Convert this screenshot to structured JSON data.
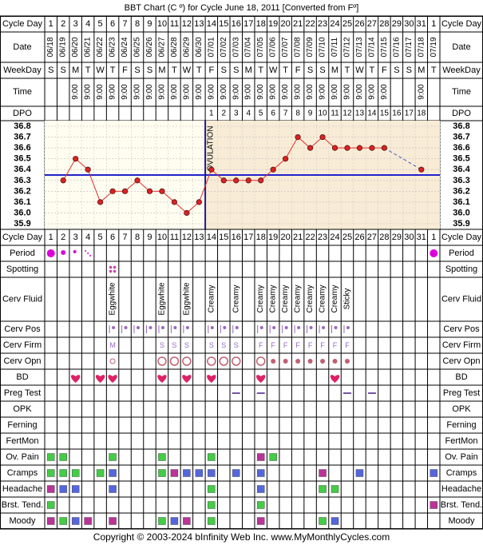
{
  "title": "BBT Chart (C º) for Cycle June 18, 2011  [Converted from Fº]",
  "footer": "Copyright © 2003-2024 bInfinity Web Inc.    www.MyMonthlyCycles.com",
  "colors": {
    "chart_bg_pre": "#fffdf0",
    "chart_bg_post": "#f9ecd6",
    "temp_line": "#e03030",
    "temp_point": "#dd2222",
    "coverline": "#2222cc",
    "ovulation_line": "#1a1a8c",
    "period": "#dd00dd",
    "spotting": "#cc44aa",
    "heart": "#dd2266",
    "pos": "#9966bb",
    "letters": "#9966cc",
    "circle": "#c06070",
    "preg_dash": "#7755aa",
    "green": "#44cc44",
    "blue": "#5566dd",
    "magenta": "#bb3399"
  },
  "row_labels": {
    "cycle_day": "Cycle Day",
    "date": "Date",
    "weekday": "WeekDay",
    "time": "Time",
    "dpo": "DPO",
    "period": "Period",
    "spotting": "Spotting",
    "cerv_fluid": "Cerv Fluid",
    "cerv_pos": "Cerv Pos",
    "cerv_firm": "Cerv Firm",
    "cerv_opn": "Cerv Opn",
    "bd": "BD",
    "preg_test": "Preg Test",
    "opk": "OPK",
    "ferning": "Ferning",
    "fertmon": "FertMon",
    "ov_pain": "Ov. Pain",
    "cramps": "Cramps",
    "headache": "Headache",
    "brst_tend": "Brst. Tend.",
    "moody": "Moody"
  },
  "cycle_days": [
    "1",
    "2",
    "3",
    "4",
    "5",
    "6",
    "7",
    "8",
    "9",
    "10",
    "11",
    "12",
    "13",
    "14",
    "15",
    "16",
    "17",
    "18",
    "19",
    "20",
    "21",
    "22",
    "23",
    "24",
    "25",
    "26",
    "27",
    "28",
    "29",
    "30",
    "31",
    "1"
  ],
  "dates": [
    "06/18",
    "06/19",
    "06/20",
    "06/21",
    "06/22",
    "06/23",
    "06/24",
    "06/25",
    "06/26",
    "06/27",
    "06/28",
    "06/29",
    "06/30",
    "07/01",
    "07/02",
    "07/03",
    "07/04",
    "07/05",
    "07/06",
    "07/07",
    "07/08",
    "07/09",
    "07/10",
    "07/11",
    "07/12",
    "07/13",
    "07/14",
    "07/15",
    "07/16",
    "07/17",
    "07/18",
    "07/19"
  ],
  "weekdays": [
    "S",
    "S",
    "M",
    "T",
    "W",
    "T",
    "F",
    "S",
    "S",
    "M",
    "T",
    "W",
    "T",
    "F",
    "S",
    "S",
    "M",
    "T",
    "W",
    "T",
    "F",
    "S",
    "S",
    "M",
    "T",
    "W",
    "T",
    "F",
    "S",
    "S",
    "M",
    "T"
  ],
  "times": [
    "",
    "",
    "9:00",
    "9:00",
    "9:00",
    "9:00",
    "9:00",
    "9:00",
    "9:00",
    "9:00",
    "9:00",
    "9:00",
    "9:00",
    "9:00",
    "9:00",
    "9:00",
    "9:00",
    "9:00",
    "9:00",
    "9:00",
    "9:00",
    "9:00",
    "9:00",
    "9:00",
    "9:00",
    "9:00",
    "9:00",
    "9:00",
    "",
    "",
    "9:00",
    ""
  ],
  "dpo": [
    "",
    "",
    "",
    "",
    "",
    "",
    "",
    "",
    "",
    "",
    "",
    "",
    "",
    "1",
    "2",
    "3",
    "4",
    "5",
    "6",
    "7",
    "8",
    "9",
    "10",
    "11",
    "12",
    "13",
    "14",
    "15",
    "16",
    "17",
    "18",
    ""
  ],
  "cerv_fluid": [
    "",
    "",
    "",
    "",
    "",
    "Eggwhite",
    "",
    "",
    "",
    "Eggwhite",
    "",
    "Eggwhite",
    "",
    "Creamy",
    "",
    "Creamy",
    "",
    "Creamy",
    "Creamy",
    "Creamy",
    "Creamy",
    "Creamy",
    "Creamy",
    "Creamy",
    "Sticky",
    "",
    "",
    "",
    "",
    "",
    "",
    ""
  ],
  "cerv_firm": [
    "",
    "",
    "",
    "",
    "",
    "M",
    "",
    "",
    "",
    "S",
    "S",
    "S",
    "",
    "S",
    "S",
    "S",
    "",
    "F",
    "F",
    "F",
    "F",
    "F",
    "F",
    "F",
    "F",
    "",
    "",
    "",
    "",
    "",
    "",
    ""
  ],
  "cerv_pos": [
    false,
    false,
    false,
    false,
    false,
    true,
    true,
    true,
    true,
    true,
    true,
    true,
    false,
    true,
    true,
    true,
    false,
    true,
    true,
    true,
    true,
    true,
    true,
    true,
    true,
    false,
    false,
    false,
    false,
    false,
    false,
    false
  ],
  "cerv_opn": [
    "",
    "",
    "",
    "",
    "",
    "small",
    "",
    "",
    "",
    "large",
    "large",
    "large",
    "",
    "large",
    "large",
    "large",
    "",
    "large",
    "med",
    "med",
    "med",
    "med",
    "med",
    "med",
    "med",
    "",
    "",
    "",
    "",
    "",
    "",
    ""
  ],
  "period": [
    "heavy",
    "med",
    "light",
    "spot",
    "",
    "",
    "",
    "",
    "",
    "",
    "",
    "",
    "",
    "",
    "",
    "",
    "",
    "",
    "",
    "",
    "",
    "",
    "",
    "",
    "",
    "",
    "",
    "",
    "",
    "",
    "",
    "heavy"
  ],
  "spotting": [
    false,
    false,
    false,
    false,
    false,
    true,
    false,
    false,
    false,
    false,
    false,
    false,
    false,
    false,
    false,
    false,
    false,
    false,
    false,
    false,
    false,
    false,
    false,
    false,
    false,
    false,
    false,
    false,
    false,
    false,
    false,
    false
  ],
  "bd": [
    false,
    false,
    true,
    false,
    true,
    true,
    false,
    false,
    false,
    true,
    false,
    true,
    false,
    true,
    false,
    false,
    false,
    true,
    false,
    false,
    false,
    false,
    false,
    true,
    false,
    false,
    false,
    false,
    false,
    false,
    false,
    false
  ],
  "preg_test": [
    false,
    false,
    false,
    false,
    false,
    false,
    false,
    false,
    false,
    false,
    false,
    false,
    false,
    false,
    false,
    true,
    false,
    true,
    false,
    false,
    false,
    false,
    false,
    false,
    true,
    false,
    true,
    false,
    false,
    false,
    false,
    false
  ],
  "ov_pain": [
    "green",
    "green",
    "",
    "",
    "",
    "green",
    "",
    "",
    "",
    "green",
    "",
    "",
    "",
    "green",
    "",
    "",
    "",
    "magenta",
    "green",
    "",
    "",
    "",
    "",
    "",
    "",
    "",
    "",
    "",
    "",
    "",
    "",
    ""
  ],
  "cramps": [
    "green",
    "green",
    "green",
    "",
    "green",
    "blue",
    "",
    "",
    "",
    "green",
    "magenta",
    "blue",
    "blue",
    "blue",
    "",
    "blue",
    "",
    "blue",
    "",
    "",
    "",
    "",
    "magenta",
    "",
    "",
    "blue",
    "",
    "",
    "",
    "",
    "",
    "blue"
  ],
  "headache": [
    "magenta",
    "blue",
    "blue",
    "",
    "",
    "blue",
    "",
    "",
    "",
    "",
    "",
    "",
    "",
    "green",
    "",
    "",
    "",
    "blue",
    "",
    "",
    "",
    "",
    "green",
    "green",
    "",
    "",
    "",
    "",
    "",
    "",
    "",
    ""
  ],
  "brst_tend": [
    "green",
    "",
    "",
    "",
    "",
    "",
    "",
    "",
    "",
    "",
    "",
    "",
    "",
    "green",
    "",
    "",
    "",
    "green",
    "",
    "",
    "",
    "",
    "",
    "",
    "",
    "",
    "",
    "",
    "",
    "",
    "",
    "magenta"
  ],
  "moody": [
    "magenta",
    "green",
    "blue",
    "magenta",
    "",
    "magenta",
    "",
    "",
    "",
    "green",
    "blue",
    "magenta",
    "",
    "green",
    "",
    "",
    "",
    "magenta",
    "",
    "",
    "",
    "",
    "green",
    "blue",
    "",
    "",
    "",
    "",
    "",
    "",
    "",
    ""
  ],
  "chart_data": {
    "type": "line",
    "title": "BBT Chart (C º) for Cycle June 18, 2011  [Converted from Fº]",
    "xlabel": "Cycle Day",
    "ylabel": "",
    "x": [
      "1",
      "2",
      "3",
      "4",
      "5",
      "6",
      "7",
      "8",
      "9",
      "10",
      "11",
      "12",
      "13",
      "14",
      "15",
      "16",
      "17",
      "18",
      "19",
      "20",
      "21",
      "22",
      "23",
      "24",
      "25",
      "26",
      "27",
      "28",
      "29",
      "30",
      "31",
      "1"
    ],
    "ylim": [
      35.9,
      36.8
    ],
    "y_ticks": [
      "36.8",
      "36.7",
      "36.6",
      "36.5",
      "36.4",
      "36.3",
      "36.2",
      "36.1",
      "36.0",
      "35.9"
    ],
    "series": [
      {
        "values": [
          null,
          36.3,
          36.5,
          36.4,
          36.1,
          36.2,
          36.2,
          36.3,
          36.2,
          36.2,
          36.1,
          36.0,
          36.1,
          36.4,
          36.3,
          36.3,
          36.3,
          36.3,
          36.4,
          36.5,
          36.7,
          36.6,
          36.7,
          36.6,
          36.6,
          36.6,
          36.6,
          36.6,
          null,
          null,
          36.4,
          null
        ]
      }
    ],
    "coverline": 36.35,
    "ovulation_day": 13,
    "ovulation_label": "OVULATION",
    "grid": true
  }
}
